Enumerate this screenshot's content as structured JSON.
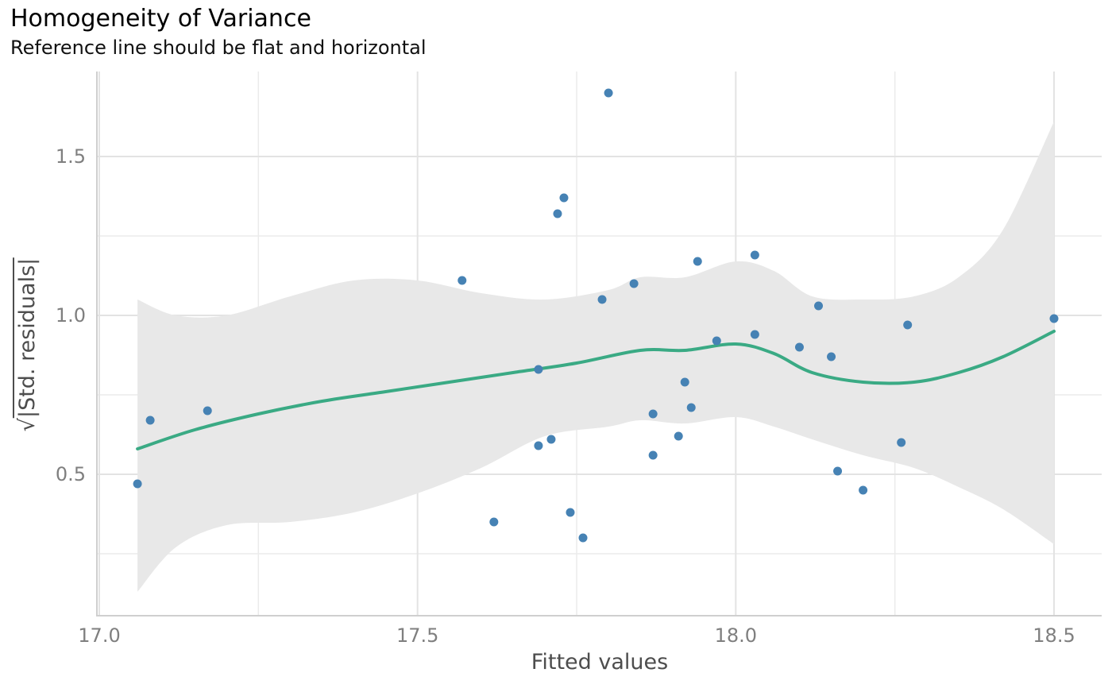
{
  "chart_data": {
    "type": "scatter",
    "title": "Homogeneity of Variance",
    "subtitle": "Reference line should be flat and horizontal",
    "xlabel": "Fitted values",
    "ylabel_radical": "√",
    "ylabel_text": "|Std. residuals|",
    "xlim": [
      17.0,
      18.5
    ],
    "ylim": [
      0.1,
      1.75
    ],
    "x_ticks": [
      17.0,
      17.5,
      18.0,
      18.5
    ],
    "x_tick_labels": [
      "17.0",
      "17.5",
      "18.0",
      "18.5"
    ],
    "y_ticks": [
      0.5,
      1.0,
      1.5
    ],
    "y_tick_labels": [
      "0.5",
      "1.0",
      "1.5"
    ],
    "grid": true,
    "point_color": "#4682b4",
    "line_color": "#3aaa84",
    "band_color": "#e8e8e8",
    "points": [
      {
        "x": 17.06,
        "y": 0.47
      },
      {
        "x": 17.08,
        "y": 0.67
      },
      {
        "x": 17.17,
        "y": 0.7
      },
      {
        "x": 17.57,
        "y": 1.11
      },
      {
        "x": 17.62,
        "y": 0.35
      },
      {
        "x": 17.69,
        "y": 0.59
      },
      {
        "x": 17.69,
        "y": 0.83
      },
      {
        "x": 17.71,
        "y": 0.61
      },
      {
        "x": 17.72,
        "y": 1.32
      },
      {
        "x": 17.73,
        "y": 1.37
      },
      {
        "x": 17.74,
        "y": 0.38
      },
      {
        "x": 17.76,
        "y": 0.3
      },
      {
        "x": 17.79,
        "y": 1.05
      },
      {
        "x": 17.8,
        "y": 1.7
      },
      {
        "x": 17.84,
        "y": 1.1
      },
      {
        "x": 17.87,
        "y": 0.69
      },
      {
        "x": 17.87,
        "y": 0.56
      },
      {
        "x": 17.91,
        "y": 0.62
      },
      {
        "x": 17.92,
        "y": 0.79
      },
      {
        "x": 17.93,
        "y": 0.71
      },
      {
        "x": 17.94,
        "y": 1.17
      },
      {
        "x": 17.97,
        "y": 0.92
      },
      {
        "x": 18.03,
        "y": 0.94
      },
      {
        "x": 18.03,
        "y": 1.19
      },
      {
        "x": 18.1,
        "y": 0.9
      },
      {
        "x": 18.13,
        "y": 1.03
      },
      {
        "x": 18.15,
        "y": 0.87
      },
      {
        "x": 18.16,
        "y": 0.51
      },
      {
        "x": 18.2,
        "y": 0.45
      },
      {
        "x": 18.26,
        "y": 0.6
      },
      {
        "x": 18.27,
        "y": 0.97
      },
      {
        "x": 18.5,
        "y": 0.99
      }
    ],
    "smooth_line": {
      "x": [
        17.06,
        17.15,
        17.25,
        17.35,
        17.45,
        17.55,
        17.65,
        17.75,
        17.85,
        17.92,
        18.0,
        18.06,
        18.12,
        18.2,
        18.28,
        18.35,
        18.42,
        18.5
      ],
      "y": [
        0.58,
        0.64,
        0.69,
        0.73,
        0.76,
        0.79,
        0.82,
        0.85,
        0.89,
        0.89,
        0.91,
        0.88,
        0.82,
        0.79,
        0.79,
        0.82,
        0.87,
        0.95
      ]
    },
    "confidence_band": {
      "x": [
        17.06,
        17.12,
        17.2,
        17.3,
        17.4,
        17.5,
        17.6,
        17.7,
        17.8,
        17.85,
        17.92,
        18.0,
        18.06,
        18.12,
        18.2,
        18.28,
        18.35,
        18.42,
        18.5
      ],
      "upper": [
        1.05,
        1.0,
        1.0,
        1.06,
        1.11,
        1.11,
        1.07,
        1.05,
        1.08,
        1.12,
        1.12,
        1.17,
        1.14,
        1.06,
        1.05,
        1.06,
        1.12,
        1.27,
        1.61
      ],
      "lower": [
        0.13,
        0.27,
        0.34,
        0.35,
        0.38,
        0.44,
        0.52,
        0.62,
        0.65,
        0.67,
        0.66,
        0.68,
        0.65,
        0.61,
        0.56,
        0.52,
        0.46,
        0.39,
        0.28
      ]
    }
  }
}
